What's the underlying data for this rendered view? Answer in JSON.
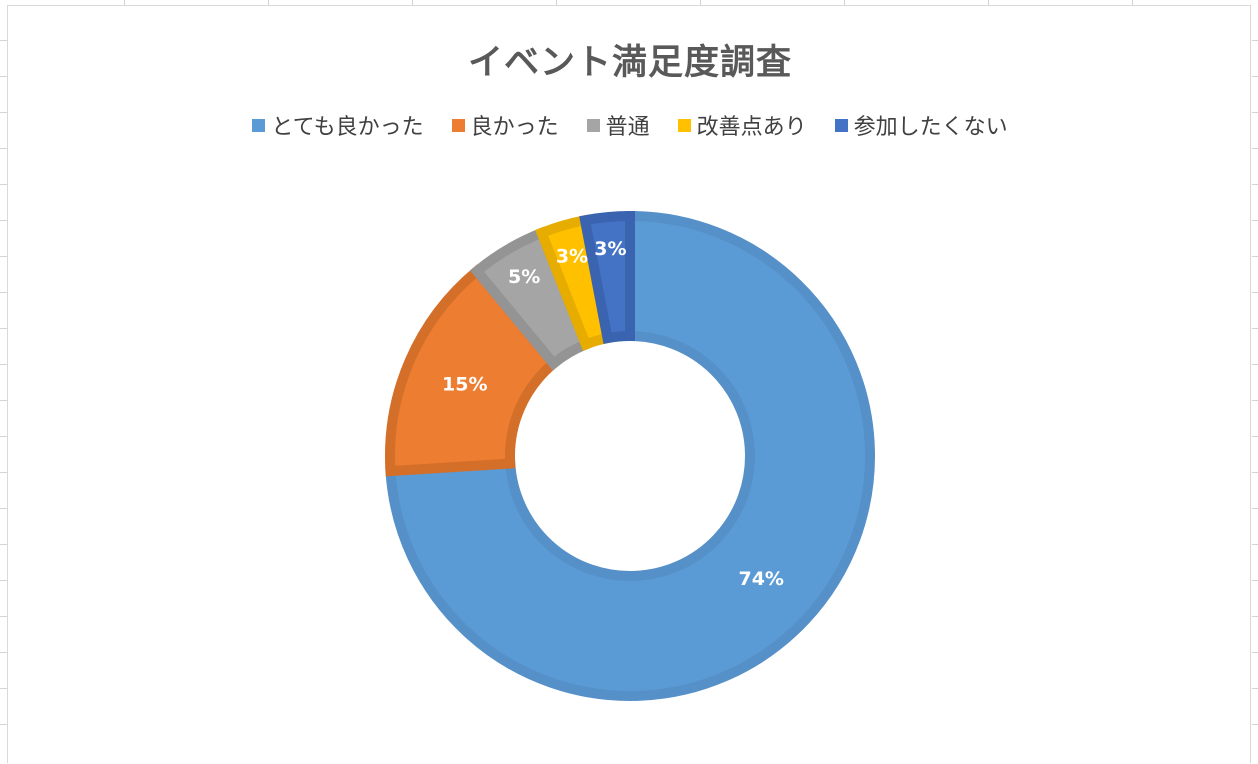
{
  "chart_data": {
    "type": "pie",
    "variant": "doughnut",
    "title": "イベント満足度調査",
    "legend_position": "top",
    "categories": [
      "とても良かった",
      "良かった",
      "普通",
      "改善点あり",
      "参加したくない"
    ],
    "values": [
      74,
      15,
      5,
      3,
      3
    ],
    "value_labels": [
      "74%",
      "15%",
      "5%",
      "3%",
      "3%"
    ],
    "colors": [
      "#5b9bd5",
      "#ed7d31",
      "#a5a5a5",
      "#ffc000",
      "#4472c4"
    ],
    "border_colors": [
      "#5590c8",
      "#d46f2a",
      "#949494",
      "#e6ad00",
      "#3a63b0"
    ]
  }
}
